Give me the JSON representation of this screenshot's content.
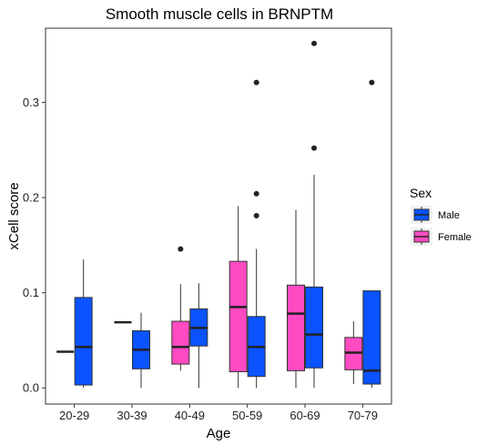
{
  "chart_data": {
    "type": "boxplot",
    "title": "Smooth muscle cells in BRNPTM",
    "xlabel": "Age",
    "ylabel": "xCell score",
    "categories": [
      "20-29",
      "30-39",
      "40-49",
      "50-59",
      "60-69",
      "70-79"
    ],
    "yticks": [
      0.0,
      0.1,
      0.2,
      0.3
    ],
    "ytick_labels": [
      "0.0",
      "0.1",
      "0.2",
      "0.3"
    ],
    "ylim": [
      -0.017,
      0.378
    ],
    "grid": false,
    "legend": {
      "title": "Sex",
      "position": "right"
    },
    "series": [
      {
        "name": "Male",
        "color": "#0A53FF",
        "boxes": [
          {
            "category": "20-29",
            "min": 0.0,
            "q1": 0.003,
            "median": 0.043,
            "q3": 0.095,
            "max": 0.135,
            "outliers": []
          },
          {
            "category": "30-39",
            "min": 0.0,
            "q1": 0.02,
            "median": 0.04,
            "q3": 0.06,
            "max": 0.079,
            "outliers": []
          },
          {
            "category": "40-49",
            "min": 0.0,
            "q1": 0.044,
            "median": 0.063,
            "q3": 0.083,
            "max": 0.11,
            "outliers": []
          },
          {
            "category": "50-59",
            "min": 0.0,
            "q1": 0.012,
            "median": 0.043,
            "q3": 0.075,
            "max": 0.146,
            "outliers": [
              0.181,
              0.204,
              0.321
            ]
          },
          {
            "category": "60-69",
            "min": 0.0,
            "q1": 0.021,
            "median": 0.056,
            "q3": 0.106,
            "max": 0.224,
            "outliers": [
              0.252,
              0.362
            ]
          },
          {
            "category": "70-79",
            "min": 0.0,
            "q1": 0.004,
            "median": 0.018,
            "q3": 0.102,
            "max": 0.102,
            "outliers": [
              0.321
            ]
          }
        ]
      },
      {
        "name": "Female",
        "color": "#FF4AC2",
        "boxes": [
          {
            "category": "20-29",
            "min": 0.038,
            "q1": 0.038,
            "median": 0.038,
            "q3": 0.038,
            "max": 0.038,
            "outliers": []
          },
          {
            "category": "30-39",
            "min": 0.069,
            "q1": 0.069,
            "median": 0.069,
            "q3": 0.069,
            "max": 0.069,
            "outliers": []
          },
          {
            "category": "40-49",
            "min": 0.018,
            "q1": 0.025,
            "median": 0.043,
            "q3": 0.07,
            "max": 0.109,
            "outliers": [
              0.146
            ]
          },
          {
            "category": "50-59",
            "min": 0.0,
            "q1": 0.017,
            "median": 0.085,
            "q3": 0.133,
            "max": 0.191,
            "outliers": []
          },
          {
            "category": "60-69",
            "min": 0.0,
            "q1": 0.018,
            "median": 0.078,
            "q3": 0.108,
            "max": 0.187,
            "outliers": []
          },
          {
            "category": "70-79",
            "min": 0.004,
            "q1": 0.019,
            "median": 0.037,
            "q3": 0.053,
            "max": 0.07,
            "outliers": []
          }
        ]
      }
    ]
  }
}
